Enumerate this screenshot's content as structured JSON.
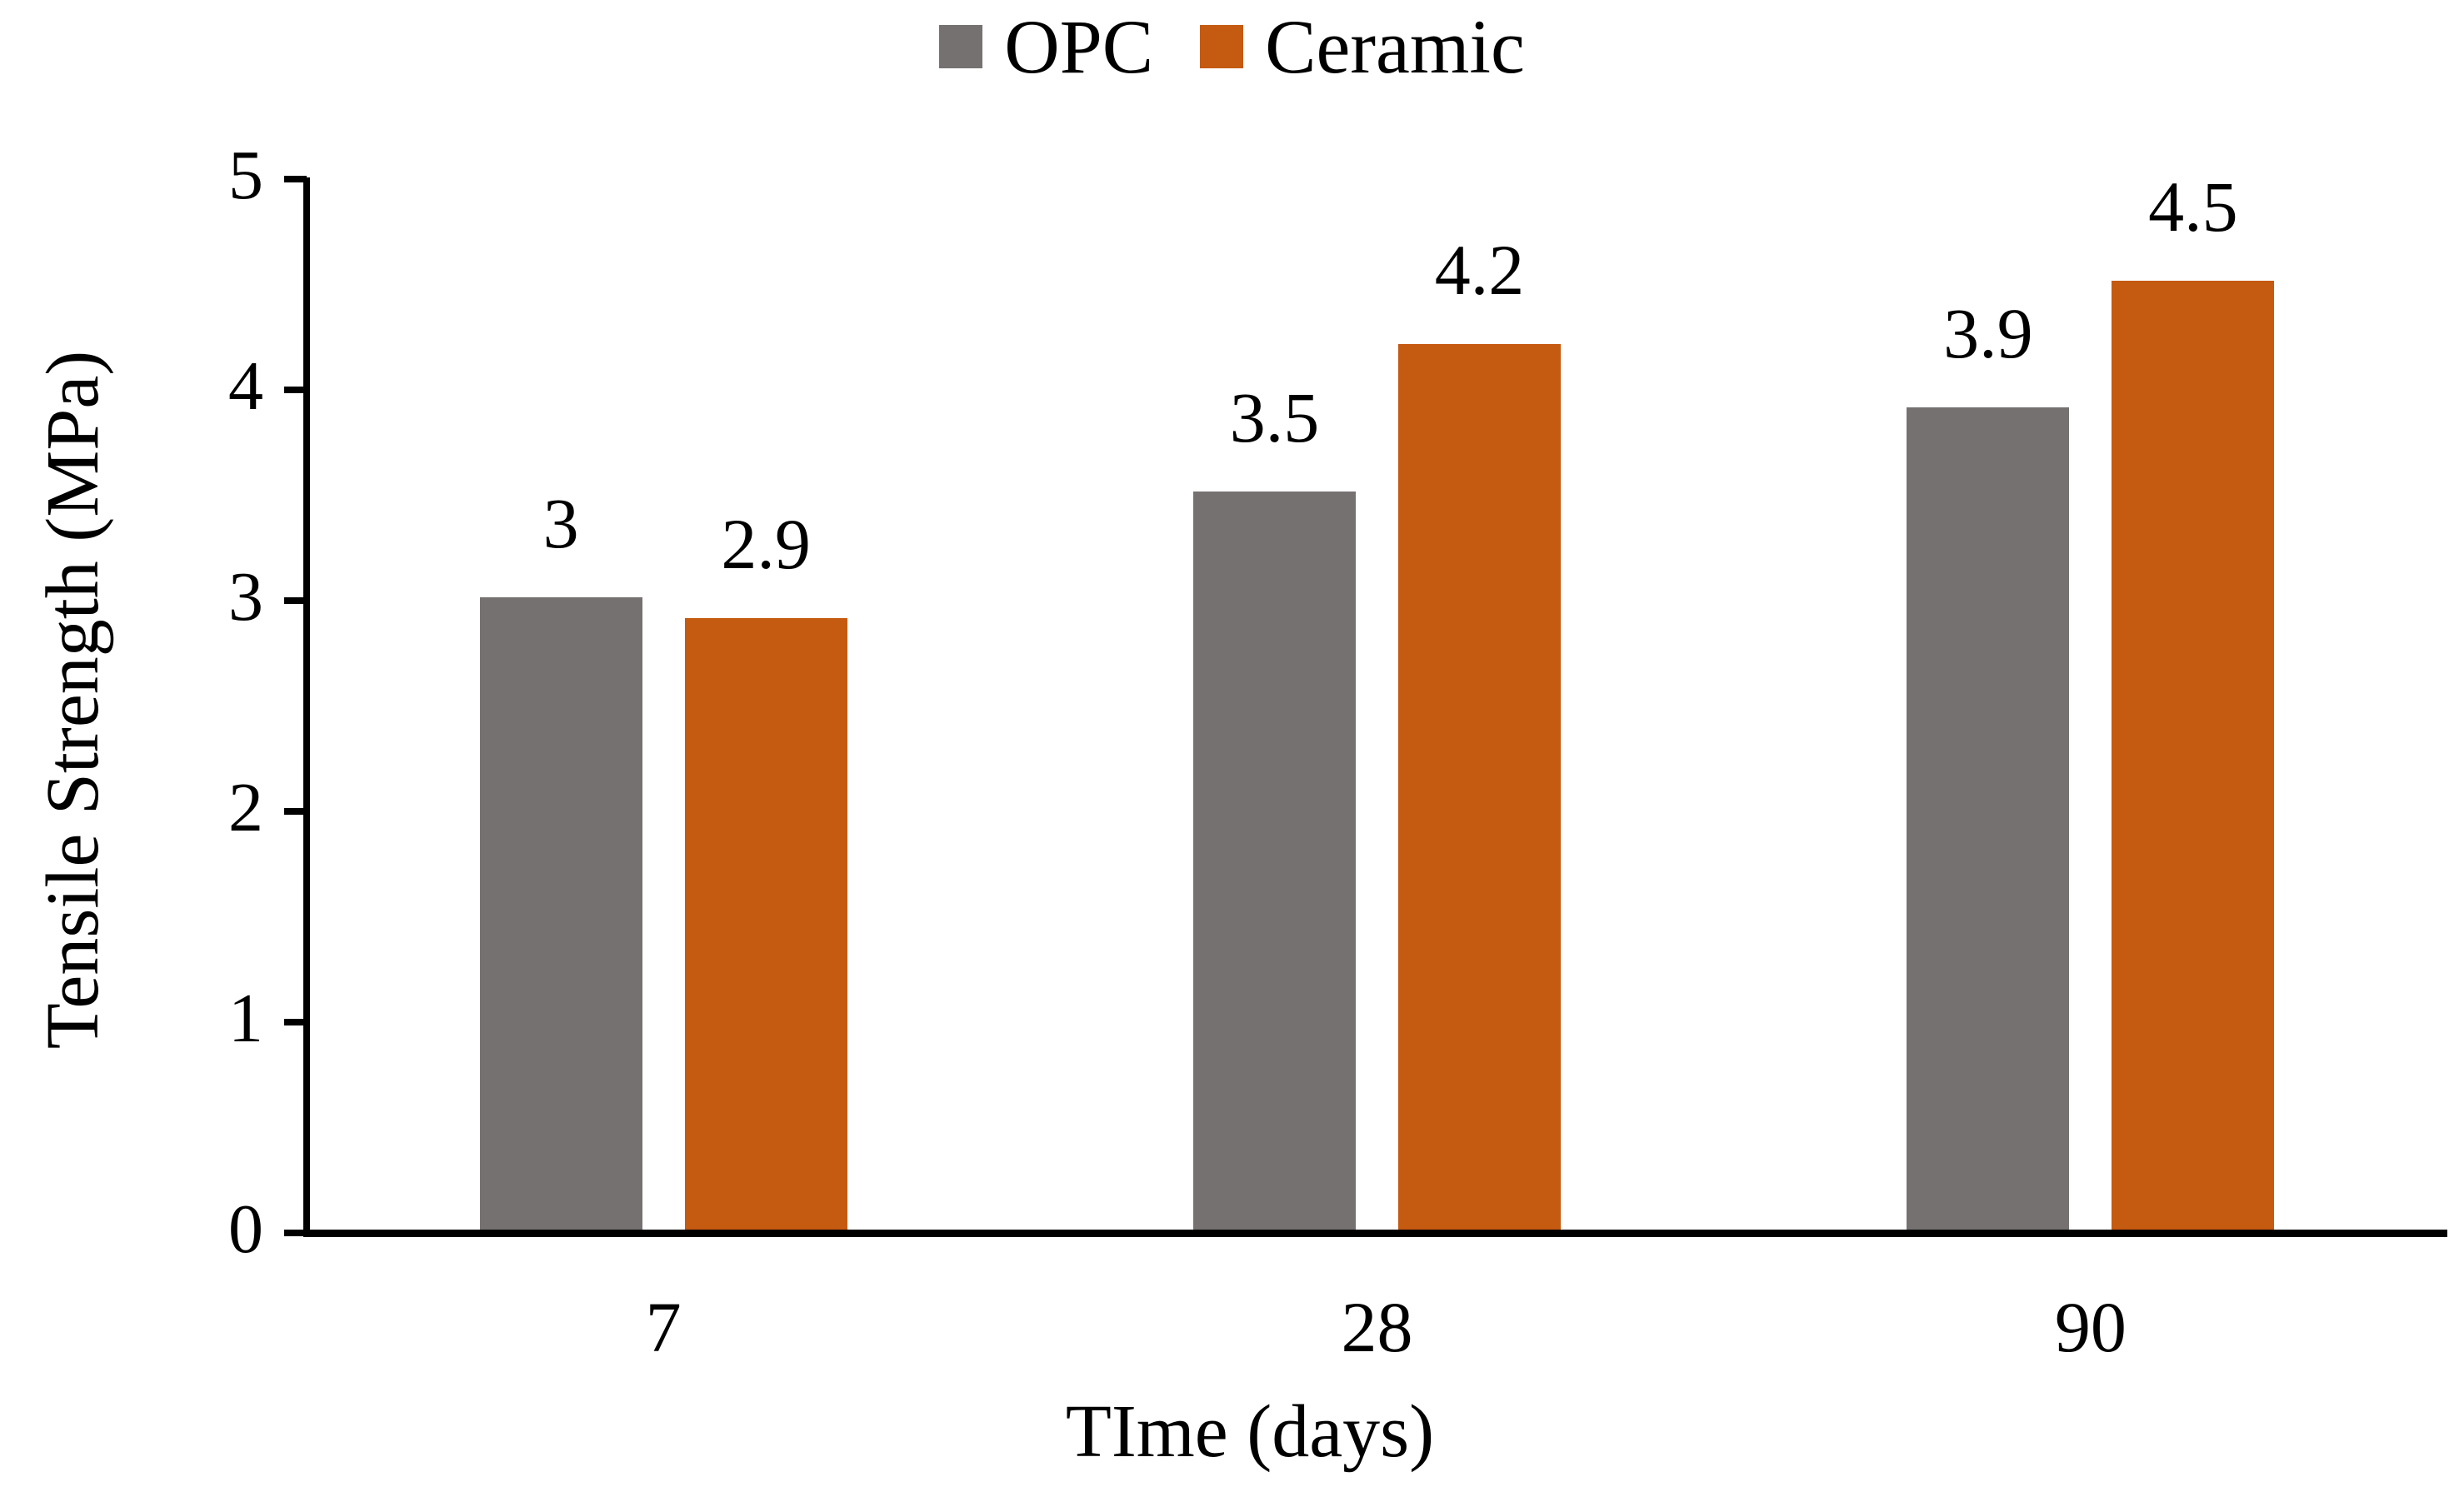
{
  "chart_data": {
    "type": "bar",
    "title": "",
    "categories": [
      "7",
      "28",
      "90"
    ],
    "series": [
      {
        "name": "OPC",
        "color": "#767171",
        "values": [
          3,
          3.5,
          3.9
        ],
        "labels": [
          "3",
          "3.5",
          "3.9"
        ]
      },
      {
        "name": "Ceramic",
        "color": "#C55A11",
        "values": [
          2.9,
          4.2,
          4.5
        ],
        "labels": [
          "2.9",
          "4.2",
          "4.5"
        ]
      }
    ],
    "xlabel": "TIme (days)",
    "ylabel": "Tensile Strength (MPa)",
    "ylim": [
      0,
      5
    ],
    "yticks": [
      0,
      1,
      2,
      3,
      4,
      5
    ],
    "ytick_labels": [
      "0",
      "1",
      "2",
      "3",
      "4",
      "5"
    ],
    "legend_position": "top-center",
    "grid": false,
    "data_labels": true,
    "axis_color": "#000000",
    "text_color": "#000000",
    "background_color": "#ffffff"
  }
}
